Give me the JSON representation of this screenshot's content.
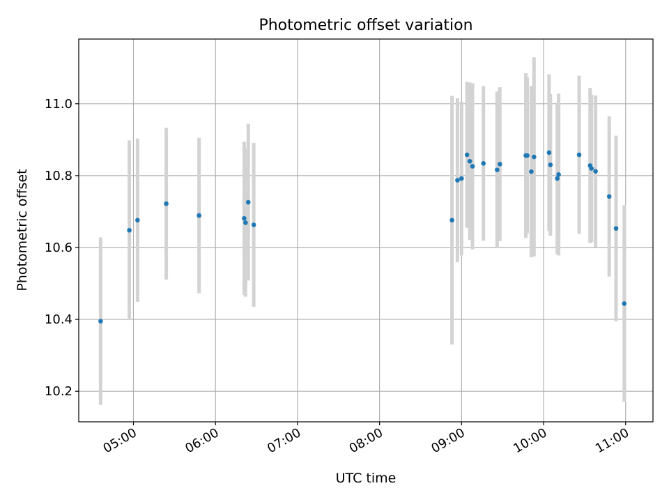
{
  "chart_data": {
    "type": "scatter",
    "title": "Photometric offset variation",
    "xlabel": "UTC time",
    "ylabel": "Photometric offset",
    "x_unit": "UTC time (HH:MM)",
    "xlim": [
      "04:20",
      "11:20"
    ],
    "ylim": [
      10.115,
      11.18
    ],
    "x_ticks": [
      "05:00",
      "06:00",
      "07:00",
      "08:00",
      "09:00",
      "10:00",
      "11:00"
    ],
    "y_ticks": [
      10.2,
      10.4,
      10.6,
      10.8,
      11.0
    ],
    "y_tick_labels": [
      "10.2",
      "10.4",
      "10.6",
      "10.8",
      "11.0"
    ],
    "grid": true,
    "colors": {
      "marker": "#1f77b4",
      "errorbar": "#d3d3d3",
      "grid": "#b0b0b0"
    },
    "points": [
      {
        "x": "04:36",
        "y": 10.395,
        "err": 0.233
      },
      {
        "x": "04:57",
        "y": 10.648,
        "err": 0.25
      },
      {
        "x": "05:03",
        "y": 10.676,
        "err": 0.227
      },
      {
        "x": "05:24",
        "y": 10.722,
        "err": 0.211
      },
      {
        "x": "05:48",
        "y": 10.689,
        "err": 0.216
      },
      {
        "x": "06:21",
        "y": 10.681,
        "err": 0.213
      },
      {
        "x": "06:22",
        "y": 10.669,
        "err": 0.206
      },
      {
        "x": "06:24",
        "y": 10.726,
        "err": 0.218
      },
      {
        "x": "06:28",
        "y": 10.663,
        "err": 0.228
      },
      {
        "x": "08:53",
        "y": 10.676,
        "err": 0.346
      },
      {
        "x": "08:57",
        "y": 10.787,
        "err": 0.228
      },
      {
        "x": "09:00",
        "y": 10.792,
        "err": 0.214
      },
      {
        "x": "09:04",
        "y": 10.858,
        "err": 0.203
      },
      {
        "x": "09:06",
        "y": 10.84,
        "err": 0.219
      },
      {
        "x": "09:08",
        "y": 10.826,
        "err": 0.231
      },
      {
        "x": "09:16",
        "y": 10.834,
        "err": 0.215
      },
      {
        "x": "09:26",
        "y": 10.816,
        "err": 0.218
      },
      {
        "x": "09:28",
        "y": 10.832,
        "err": 0.214
      },
      {
        "x": "09:47",
        "y": 10.856,
        "err": 0.229
      },
      {
        "x": "09:48",
        "y": 10.856,
        "err": 0.217
      },
      {
        "x": "09:51",
        "y": 10.811,
        "err": 0.238
      },
      {
        "x": "09:53",
        "y": 10.852,
        "err": 0.277
      },
      {
        "x": "10:04",
        "y": 10.864,
        "err": 0.218
      },
      {
        "x": "10:05",
        "y": 10.83,
        "err": 0.197
      },
      {
        "x": "10:10",
        "y": 10.792,
        "err": 0.211
      },
      {
        "x": "10:11",
        "y": 10.803,
        "err": 0.225
      },
      {
        "x": "10:26",
        "y": 10.858,
        "err": 0.22
      },
      {
        "x": "10:34",
        "y": 10.828,
        "err": 0.216
      },
      {
        "x": "10:35",
        "y": 10.82,
        "err": 0.205
      },
      {
        "x": "10:38",
        "y": 10.812,
        "err": 0.211
      },
      {
        "x": "10:48",
        "y": 10.742,
        "err": 0.223
      },
      {
        "x": "10:53",
        "y": 10.653,
        "err": 0.258
      },
      {
        "x": "10:59",
        "y": 10.444,
        "err": 0.273
      }
    ]
  }
}
